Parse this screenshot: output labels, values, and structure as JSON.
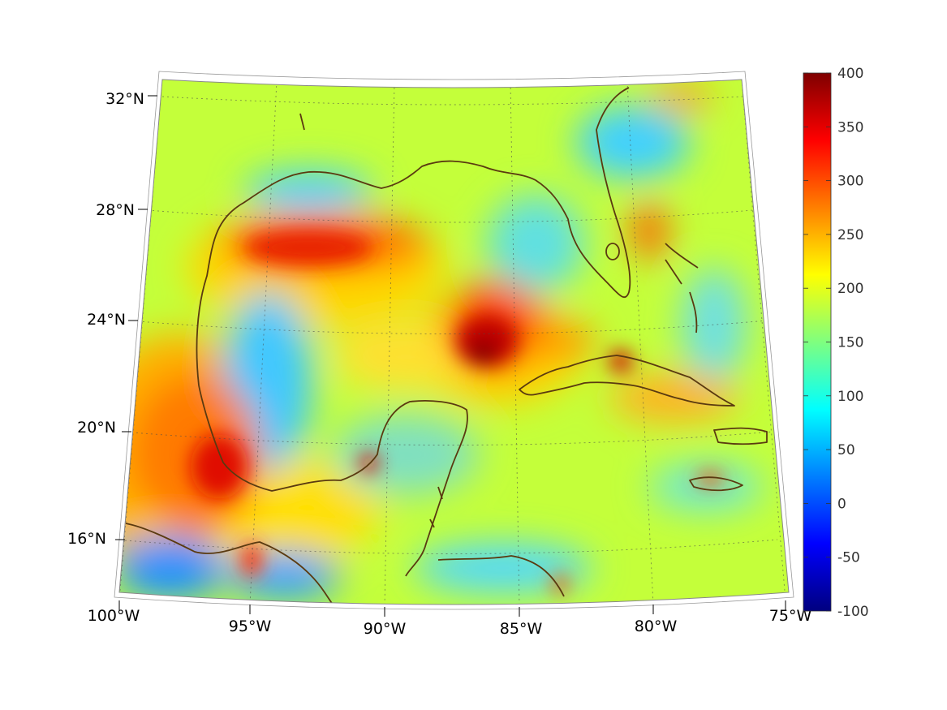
{
  "map": {
    "projection": "conic",
    "lon_ticks": [
      "100°W",
      "95°W",
      "90°W",
      "85°W",
      "80°W",
      "75°W"
    ],
    "lat_ticks": [
      "32°N",
      "28°N",
      "24°N",
      "20°N",
      "16°N"
    ],
    "lon_values": [
      -100,
      -95,
      -90,
      -85,
      -80,
      -75
    ],
    "lat_values": [
      32,
      28,
      24,
      20,
      16
    ],
    "grid": true,
    "coastline_color": "#5a3a10"
  },
  "colorbar": {
    "min": -100,
    "max": 400,
    "labels": [
      "400",
      "350",
      "300",
      "250",
      "200",
      "150",
      "100",
      "50",
      "0",
      "-50",
      "-100"
    ],
    "values": [
      400,
      350,
      300,
      250,
      200,
      150,
      100,
      50,
      0,
      -50,
      -100
    ],
    "colormap": "jet",
    "colors": [
      "#00007f",
      "#0000ff",
      "#007fff",
      "#00ffff",
      "#7fff7f",
      "#ffff00",
      "#ff7f00",
      "#ff0000",
      "#7f0000"
    ]
  },
  "field": {
    "background_value": 185,
    "features": [
      {
        "name": "western-gulf-warm-band",
        "value": 300
      },
      {
        "name": "central-gulf-hotspot",
        "value": 380
      },
      {
        "name": "southern-mexico-maximum",
        "value": 330
      },
      {
        "name": "west-florida-shelf-minimum",
        "value": 110
      },
      {
        "name": "bay-of-campeche-minimum",
        "value": 90
      },
      {
        "name": "east-pacific-minimum",
        "value": 70
      }
    ]
  }
}
